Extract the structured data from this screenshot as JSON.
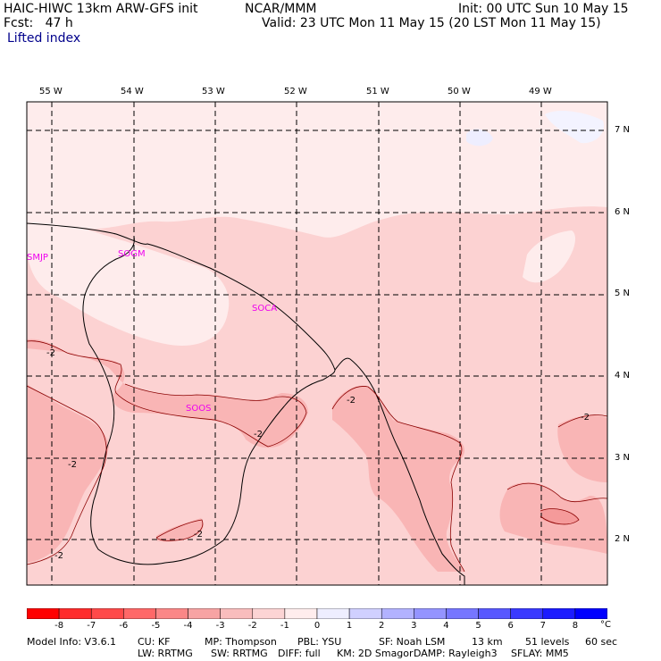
{
  "header": {
    "model": "HAIC-HIWC 13km ARW-GFS init",
    "org": "NCAR/MMM",
    "init": "Init: 00 UTC Sun 10 May 15",
    "fcst": "Fcst:   47 h",
    "valid": "Valid: 23 UTC Mon 11 May 15 (20 LST Mon 11 May 15)",
    "field": "Lifted index"
  },
  "map": {
    "lon_labels": [
      "55 W",
      "54 W",
      "53 W",
      "52 W",
      "51 W",
      "50 W",
      "49 W"
    ],
    "lat_labels": [
      "7 N",
      "6 N",
      "5 N",
      "4 N",
      "3 N",
      "2 N"
    ],
    "stations": [
      "SMJP",
      "SOGM",
      "SOCA",
      "SOOS"
    ],
    "contour_label": "-2"
  },
  "colorbar": {
    "ticks": [
      "-8",
      "-7",
      "-6",
      "-5",
      "-4",
      "-3",
      "-2",
      "-1",
      "0",
      "1",
      "2",
      "3",
      "4",
      "5",
      "6",
      "7",
      "8"
    ],
    "unit": "°C",
    "colors": [
      "#ff0000",
      "#ff2c2c",
      "#ff4a4a",
      "#ff6868",
      "#fb8787",
      "#f7a3a3",
      "#f9bdbd",
      "#fcd4d4",
      "#ffeded",
      "#eeeeff",
      "#d0d0ff",
      "#b2b2ff",
      "#9494ff",
      "#7676ff",
      "#5858ff",
      "#3a3aff",
      "#1c1cff",
      "#0000ff"
    ]
  },
  "footer": {
    "line1": [
      "Model Info: V3.6.1",
      "CU: KF",
      "MP: Thompson",
      "PBL: YSU",
      "SF: Noah LSM",
      "13 km",
      "51 levels",
      "60 sec"
    ],
    "line2": [
      "LW: RRTMG",
      "SW: RRTMG",
      "DIFF: full",
      "KM: 2D Smagor",
      "DAMP: Rayleigh3",
      "SFLAY: MM5"
    ]
  }
}
